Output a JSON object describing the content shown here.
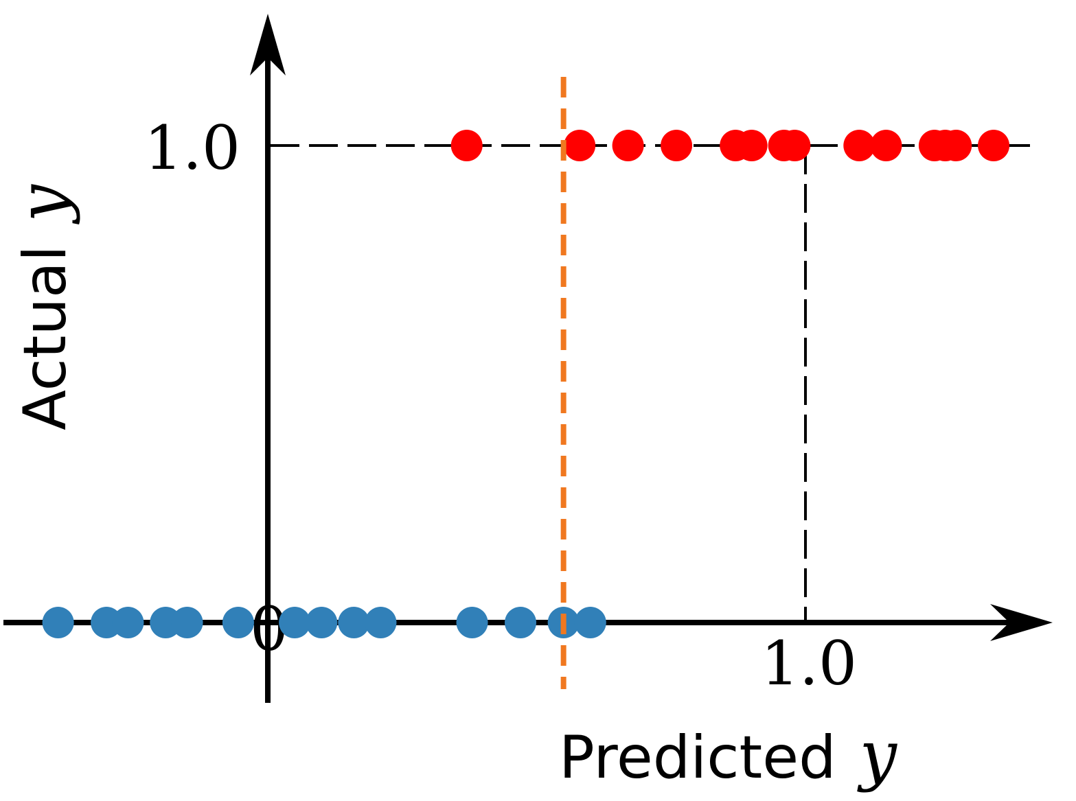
{
  "chart_data": {
    "type": "scatter",
    "xlabel": "Predicted",
    "xlabel_var": "y",
    "ylabel": "Actual",
    "ylabel_var": "y",
    "x_ticks": [
      {
        "value": 0,
        "label": "0"
      },
      {
        "value": 1.0,
        "label": "1.0"
      }
    ],
    "y_ticks": [
      {
        "value": 1.0,
        "label": "1.0"
      }
    ],
    "xlim": [
      -0.5,
      1.5
    ],
    "ylim": [
      0,
      1.0
    ],
    "grid": false,
    "threshold": {
      "x": 0.55,
      "color": "#f07820"
    },
    "reference_lines": {
      "y": 1.0,
      "x": 1.0,
      "color": "#000000"
    },
    "series": [
      {
        "color": "#3180b8",
        "points": [
          {
            "x": -0.39,
            "y": 0
          },
          {
            "x": -0.3,
            "y": 0
          },
          {
            "x": -0.26,
            "y": 0
          },
          {
            "x": -0.19,
            "y": 0
          },
          {
            "x": -0.15,
            "y": 0
          },
          {
            "x": -0.055,
            "y": 0
          },
          {
            "x": 0.05,
            "y": 0
          },
          {
            "x": 0.1,
            "y": 0
          },
          {
            "x": 0.16,
            "y": 0
          },
          {
            "x": 0.21,
            "y": 0
          },
          {
            "x": 0.38,
            "y": 0
          },
          {
            "x": 0.47,
            "y": 0
          },
          {
            "x": 0.55,
            "y": 0
          },
          {
            "x": 0.6,
            "y": 0
          }
        ]
      },
      {
        "color": "#ff0000",
        "points": [
          {
            "x": 0.37,
            "y": 1
          },
          {
            "x": 0.58,
            "y": 1
          },
          {
            "x": 0.67,
            "y": 1
          },
          {
            "x": 0.76,
            "y": 1
          },
          {
            "x": 0.87,
            "y": 1
          },
          {
            "x": 0.9,
            "y": 1
          },
          {
            "x": 0.96,
            "y": 1
          },
          {
            "x": 0.98,
            "y": 1
          },
          {
            "x": 1.1,
            "y": 1
          },
          {
            "x": 1.15,
            "y": 1
          },
          {
            "x": 1.24,
            "y": 1
          },
          {
            "x": 1.26,
            "y": 1
          },
          {
            "x": 1.28,
            "y": 1
          },
          {
            "x": 1.35,
            "y": 1
          }
        ]
      }
    ]
  }
}
